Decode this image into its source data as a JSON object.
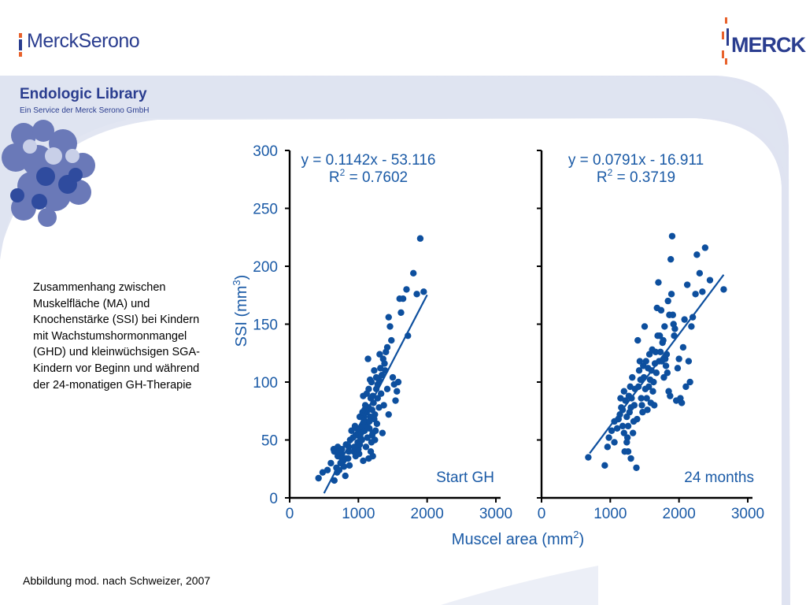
{
  "header": {
    "left_logo": "MerckSerono",
    "right_logo": "MERCK",
    "library_title": "Endologic Library",
    "library_subtitle": "Ein Service der Merck Serono GmbH"
  },
  "caption": "Zusammenhang zwischen Muskelfläche (MA) und Knochenstärke (SSI) bei Kindern mit Wachstumshormonmangel (GHD) und kleinwüchsigen SGA-Kindern vor Beginn und während der 24-monatigen GH-Therapie",
  "source_note": "Abbildung mod. nach Schweizer, 2007",
  "colors": {
    "brand_blue": "#2a3d8f",
    "point_blue": "#0d4f9e",
    "axis_label_blue": "#1a5aa6"
  },
  "chart_data": [
    {
      "type": "scatter",
      "panel_label": "Start GH",
      "equation": "y = 0.1142x - 53.116",
      "r2_prefix": "R",
      "r2_sup": "2",
      "r2_value": " = 0.7602",
      "slope": 0.1142,
      "intercept": -53.116,
      "fit_x": [
        500,
        2000
      ],
      "xlim": [
        0,
        3000
      ],
      "ylim": [
        0,
        300
      ],
      "x_ticks": [
        "0",
        "1000",
        "2000",
        "3000"
      ],
      "y_ticks": [
        "0",
        "50",
        "100",
        "150",
        "200",
        "250",
        "300"
      ],
      "ylabel_main": "SSI (mm",
      "ylabel_sup": "3",
      "ylabel_end": ")",
      "points": [
        [
          420,
          17
        ],
        [
          480,
          22
        ],
        [
          550,
          24
        ],
        [
          600,
          30
        ],
        [
          650,
          15
        ],
        [
          640,
          42
        ],
        [
          700,
          36
        ],
        [
          720,
          24
        ],
        [
          760,
          38
        ],
        [
          790,
          27
        ],
        [
          810,
          19
        ],
        [
          650,
          40
        ],
        [
          700,
          44
        ],
        [
          760,
          42
        ],
        [
          820,
          34
        ],
        [
          860,
          44
        ],
        [
          880,
          50
        ],
        [
          870,
          28
        ],
        [
          930,
          40
        ],
        [
          960,
          36
        ],
        [
          990,
          48
        ],
        [
          1000,
          56
        ],
        [
          1010,
          60
        ],
        [
          1030,
          52
        ],
        [
          1050,
          62
        ],
        [
          1080,
          70
        ],
        [
          1100,
          66
        ],
        [
          1120,
          74
        ],
        [
          1150,
          78
        ],
        [
          1160,
          60
        ],
        [
          1180,
          86
        ],
        [
          1200,
          54
        ],
        [
          1210,
          88
        ],
        [
          1230,
          68
        ],
        [
          1240,
          50
        ],
        [
          1260,
          94
        ],
        [
          1280,
          98
        ],
        [
          1300,
          102
        ],
        [
          1320,
          112
        ],
        [
          1340,
          106
        ],
        [
          1360,
          120
        ],
        [
          1380,
          116
        ],
        [
          1400,
          126
        ],
        [
          1420,
          130
        ],
        [
          1440,
          156
        ],
        [
          1460,
          148
        ],
        [
          1480,
          136
        ],
        [
          1500,
          104
        ],
        [
          1520,
          98
        ],
        [
          1540,
          84
        ],
        [
          1560,
          92
        ],
        [
          1580,
          100
        ],
        [
          1600,
          172
        ],
        [
          1620,
          160
        ],
        [
          1650,
          172
        ],
        [
          1700,
          180
        ],
        [
          1720,
          140
        ],
        [
          1800,
          194
        ],
        [
          1850,
          176
        ],
        [
          1900,
          224
        ],
        [
          1950,
          178
        ],
        [
          1000,
          42
        ],
        [
          1050,
          50
        ],
        [
          1070,
          88
        ],
        [
          1090,
          58
        ],
        [
          1110,
          44
        ],
        [
          1130,
          62
        ],
        [
          1150,
          34
        ],
        [
          1180,
          40
        ],
        [
          1210,
          36
        ],
        [
          1240,
          72
        ],
        [
          1270,
          64
        ],
        [
          1100,
          80
        ],
        [
          1120,
          90
        ],
        [
          1140,
          120
        ],
        [
          1200,
          76
        ],
        [
          1300,
          78
        ],
        [
          1350,
          56
        ],
        [
          1150,
          94
        ],
        [
          1170,
          102
        ],
        [
          950,
          62
        ],
        [
          900,
          58
        ],
        [
          850,
          34
        ],
        [
          780,
          32
        ],
        [
          740,
          30
        ],
        [
          690,
          22
        ],
        [
          1020,
          70
        ],
        [
          1060,
          74
        ],
        [
          1080,
          66
        ],
        [
          960,
          54
        ],
        [
          940,
          44
        ],
        [
          980,
          38
        ],
        [
          1210,
          56
        ],
        [
          1190,
          48
        ],
        [
          1250,
          58
        ],
        [
          1280,
          86
        ],
        [
          1330,
          90
        ],
        [
          1370,
          80
        ],
        [
          1390,
          110
        ],
        [
          1420,
          94
        ],
        [
          1440,
          72
        ],
        [
          1310,
          124
        ],
        [
          1260,
          104
        ],
        [
          1230,
          110
        ],
        [
          1190,
          100
        ],
        [
          1170,
          70
        ],
        [
          1090,
          76
        ],
        [
          1040,
          56
        ],
        [
          1020,
          46
        ],
        [
          980,
          60
        ],
        [
          920,
          52
        ],
        [
          860,
          40
        ],
        [
          820,
          46
        ],
        [
          760,
          34
        ],
        [
          720,
          40
        ],
        [
          680,
          26
        ],
        [
          1010,
          38
        ],
        [
          1070,
          32
        ],
        [
          1130,
          52
        ],
        [
          1160,
          66
        ],
        [
          1220,
          82
        ]
      ]
    },
    {
      "type": "scatter",
      "panel_label": "24 months",
      "equation": "y = 0.0791x - 16.911",
      "r2_prefix": "R",
      "r2_sup": "2",
      "r2_value": " = 0.3719",
      "slope": 0.0791,
      "intercept": -16.911,
      "fit_x": [
        700,
        2650
      ],
      "xlim": [
        0,
        3000
      ],
      "ylim": [
        0,
        300
      ],
      "x_ticks": [
        "0",
        "1000",
        "2000",
        "3000"
      ],
      "xlabel_main": "Muscel area (mm",
      "xlabel_sup": "2",
      "xlabel_end": ")",
      "points": [
        [
          680,
          35
        ],
        [
          920,
          28
        ],
        [
          960,
          44
        ],
        [
          980,
          52
        ],
        [
          1020,
          58
        ],
        [
          1060,
          66
        ],
        [
          1100,
          60
        ],
        [
          1140,
          72
        ],
        [
          1180,
          76
        ],
        [
          1200,
          92
        ],
        [
          1220,
          84
        ],
        [
          1240,
          70
        ],
        [
          1250,
          52
        ],
        [
          1260,
          62
        ],
        [
          1270,
          88
        ],
        [
          1290,
          96
        ],
        [
          1300,
          78
        ],
        [
          1320,
          104
        ],
        [
          1340,
          66
        ],
        [
          1360,
          94
        ],
        [
          1380,
          26
        ],
        [
          1400,
          136
        ],
        [
          1420,
          110
        ],
        [
          1440,
          102
        ],
        [
          1460,
          80
        ],
        [
          1480,
          114
        ],
        [
          1500,
          148
        ],
        [
          1520,
          118
        ],
        [
          1540,
          76
        ],
        [
          1560,
          96
        ],
        [
          1580,
          102
        ],
        [
          1600,
          110
        ],
        [
          1620,
          92
        ],
        [
          1640,
          80
        ],
        [
          1660,
          126
        ],
        [
          1680,
          164
        ],
        [
          1700,
          186
        ],
        [
          1720,
          140
        ],
        [
          1740,
          162
        ],
        [
          1760,
          134
        ],
        [
          1780,
          104
        ],
        [
          1800,
          120
        ],
        [
          1820,
          124
        ],
        [
          1840,
          170
        ],
        [
          1860,
          158
        ],
        [
          1880,
          206
        ],
        [
          1900,
          226
        ],
        [
          1920,
          150
        ],
        [
          1940,
          146
        ],
        [
          1960,
          84
        ],
        [
          1980,
          112
        ],
        [
          2000,
          120
        ],
        [
          2020,
          86
        ],
        [
          2040,
          82
        ],
        [
          2080,
          154
        ],
        [
          2120,
          184
        ],
        [
          2160,
          100
        ],
        [
          2180,
          148
        ],
        [
          2200,
          156
        ],
        [
          2240,
          176
        ],
        [
          2260,
          210
        ],
        [
          2300,
          194
        ],
        [
          2340,
          178
        ],
        [
          2380,
          216
        ],
        [
          2450,
          188
        ],
        [
          2650,
          180
        ],
        [
          1150,
          86
        ],
        [
          1180,
          62
        ],
        [
          1210,
          40
        ],
        [
          1240,
          48
        ],
        [
          1280,
          74
        ],
        [
          1310,
          86
        ],
        [
          1330,
          56
        ],
        [
          1350,
          80
        ],
        [
          1390,
          68
        ],
        [
          1410,
          96
        ],
        [
          1430,
          118
        ],
        [
          1450,
          86
        ],
        [
          1470,
          74
        ],
        [
          1490,
          104
        ],
        [
          1510,
          94
        ],
        [
          1530,
          86
        ],
        [
          1550,
          112
        ],
        [
          1570,
          124
        ],
        [
          1590,
          82
        ],
        [
          1610,
          128
        ],
        [
          1630,
          100
        ],
        [
          1650,
          116
        ],
        [
          1670,
          108
        ],
        [
          1690,
          140
        ],
        [
          1710,
          118
        ],
        [
          1730,
          126
        ],
        [
          1750,
          118
        ],
        [
          1770,
          136
        ],
        [
          1790,
          148
        ],
        [
          1810,
          114
        ],
        [
          1830,
          108
        ],
        [
          1850,
          92
        ],
        [
          1870,
          88
        ],
        [
          1890,
          176
        ],
        [
          1910,
          158
        ],
        [
          1930,
          140
        ],
        [
          2060,
          130
        ],
        [
          2100,
          96
        ],
        [
          2140,
          118
        ],
        [
          1060,
          48
        ],
        [
          1120,
          68
        ],
        [
          1160,
          78
        ],
        [
          1200,
          56
        ],
        [
          1260,
          40
        ],
        [
          1300,
          34
        ]
      ]
    }
  ]
}
